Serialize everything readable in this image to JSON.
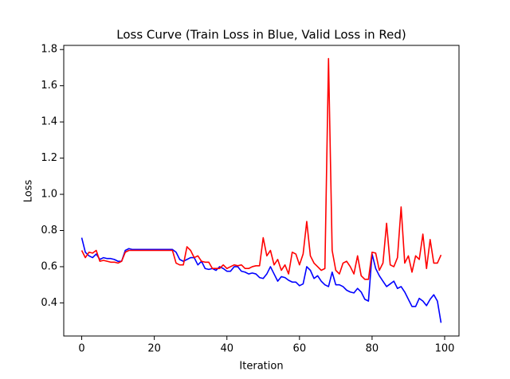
{
  "chart_data": {
    "type": "line",
    "title": "Loss Curve (Train Loss in Blue, Valid Loss in Red)",
    "x_label": "Iteration",
    "y_label": "Loss",
    "x": [
      0,
      1,
      2,
      3,
      4,
      5,
      6,
      7,
      8,
      9,
      10,
      11,
      12,
      13,
      14,
      15,
      16,
      17,
      18,
      19,
      20,
      21,
      22,
      23,
      24,
      25,
      26,
      27,
      28,
      29,
      30,
      31,
      32,
      33,
      34,
      35,
      36,
      37,
      38,
      39,
      40,
      41,
      42,
      43,
      44,
      45,
      46,
      47,
      48,
      49,
      50,
      51,
      52,
      53,
      54,
      55,
      56,
      57,
      58,
      59,
      60,
      61,
      62,
      63,
      64,
      65,
      66,
      67,
      68,
      69,
      70,
      71,
      72,
      73,
      74,
      75,
      76,
      77,
      78,
      79,
      80,
      81,
      82,
      83,
      84,
      85,
      86,
      87,
      88,
      89,
      90,
      91,
      92,
      93,
      94,
      95,
      96,
      97,
      98,
      99
    ],
    "series": [
      {
        "color": "#0000ff",
        "values": [
          0.76,
          0.68,
          0.66,
          0.65,
          0.67,
          0.64,
          0.65,
          0.645,
          0.645,
          0.64,
          0.63,
          0.63,
          0.69,
          0.7,
          0.695,
          0.695,
          0.695,
          0.695,
          0.695,
          0.695,
          0.695,
          0.695,
          0.695,
          0.695,
          0.695,
          0.695,
          0.68,
          0.64,
          0.63,
          0.64,
          0.65,
          0.65,
          0.61,
          0.63,
          0.59,
          0.585,
          0.59,
          0.58,
          0.6,
          0.59,
          0.575,
          0.575,
          0.6,
          0.6,
          0.575,
          0.57,
          0.56,
          0.565,
          0.56,
          0.54,
          0.535,
          0.56,
          0.6,
          0.56,
          0.52,
          0.545,
          0.54,
          0.525,
          0.515,
          0.515,
          0.495,
          0.505,
          0.6,
          0.58,
          0.535,
          0.55,
          0.52,
          0.5,
          0.49,
          0.57,
          0.5,
          0.5,
          0.49,
          0.47,
          0.46,
          0.455,
          0.48,
          0.46,
          0.42,
          0.41,
          0.67,
          0.59,
          0.55,
          0.52,
          0.49,
          0.505,
          0.52,
          0.48,
          0.49,
          0.46,
          0.42,
          0.38,
          0.38,
          0.425,
          0.41,
          0.385,
          0.42,
          0.445,
          0.41,
          0.29
        ]
      },
      {
        "color": "#ff0000",
        "values": [
          0.69,
          0.65,
          0.68,
          0.675,
          0.69,
          0.63,
          0.635,
          0.63,
          0.625,
          0.625,
          0.62,
          0.63,
          0.68,
          0.69,
          0.69,
          0.69,
          0.69,
          0.69,
          0.69,
          0.69,
          0.69,
          0.69,
          0.69,
          0.69,
          0.69,
          0.69,
          0.62,
          0.61,
          0.61,
          0.71,
          0.69,
          0.65,
          0.66,
          0.63,
          0.625,
          0.625,
          0.59,
          0.59,
          0.59,
          0.61,
          0.59,
          0.6,
          0.61,
          0.605,
          0.61,
          0.59,
          0.59,
          0.6,
          0.605,
          0.605,
          0.76,
          0.66,
          0.69,
          0.61,
          0.64,
          0.58,
          0.61,
          0.56,
          0.68,
          0.67,
          0.61,
          0.67,
          0.85,
          0.66,
          0.62,
          0.6,
          0.58,
          0.59,
          1.75,
          0.69,
          0.58,
          0.56,
          0.62,
          0.63,
          0.6,
          0.56,
          0.66,
          0.55,
          0.53,
          0.53,
          0.68,
          0.675,
          0.58,
          0.62,
          0.84,
          0.61,
          0.6,
          0.65,
          0.93,
          0.62,
          0.66,
          0.57,
          0.66,
          0.64,
          0.78,
          0.59,
          0.75,
          0.62,
          0.62,
          0.665
        ]
      }
    ],
    "xlim": [
      -4.95,
      103.95
    ],
    "ylim": [
      0.217,
      1.823
    ],
    "xticks": [
      0,
      20,
      40,
      60,
      80,
      100
    ],
    "yticks": [
      0.4,
      0.6,
      0.8,
      {
        "value": 1,
        "label": "1.0"
      },
      1.2,
      1.4,
      1.6,
      1.8
    ],
    "grid": false
  }
}
